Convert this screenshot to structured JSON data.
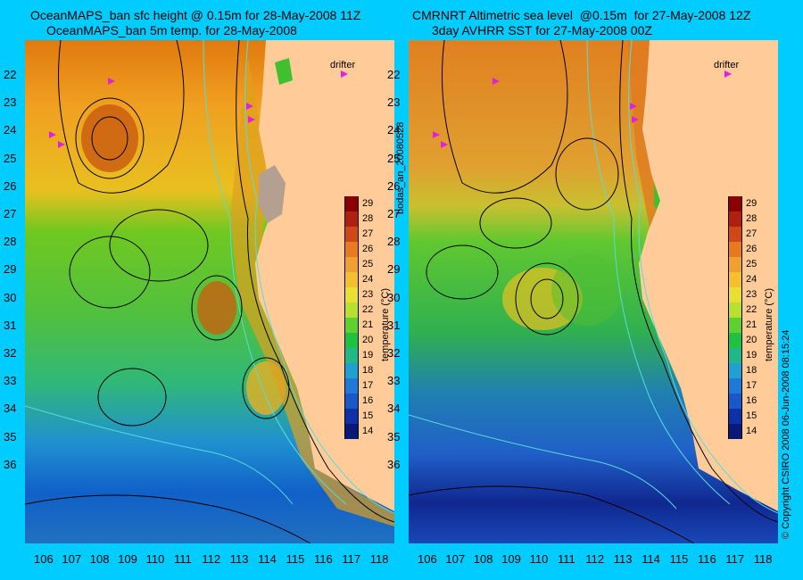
{
  "left_panel": {
    "title_line1": "OceanMAPS_ban sfc height @ 0.15m for 28-May-2008 11Z",
    "title_line2": "OceanMAPS_ban 5m temp. for 28-May-2008",
    "drifter_label": "drifter",
    "colorbar_label": "temperature (°C)"
  },
  "right_panel": {
    "title_line1": "CMRNRT Altimetric sea level  @0.15m  for 27-May-2008 12Z",
    "title_line2": "3day AVHRR SST for 27-May-2008 00Z",
    "drifter_label": "drifter",
    "colorbar_label": "temperature (°C)"
  },
  "side_text_left": "bodas_an_20080528",
  "side_text_right": "© Copyright CSIRO 2008    06-Jun-2008 08:15:24",
  "lat_ticks": [
    "22",
    "23",
    "24",
    "25",
    "26",
    "27",
    "28",
    "29",
    "30",
    "31",
    "32",
    "33",
    "34",
    "35",
    "36"
  ],
  "lon_ticks": [
    "106",
    "107",
    "108",
    "109",
    "110",
    "111",
    "112",
    "113",
    "114",
    "115",
    "116",
    "117",
    "118"
  ],
  "colorbar_ticks": [
    "29",
    "28",
    "27",
    "26",
    "25",
    "24",
    "23",
    "22",
    "21",
    "20",
    "19",
    "18",
    "17",
    "16",
    "15",
    "14"
  ],
  "colors": {
    "background": "#00CCFF",
    "land": "#FFCC99",
    "coast_cyan": "#55DDDD"
  }
}
